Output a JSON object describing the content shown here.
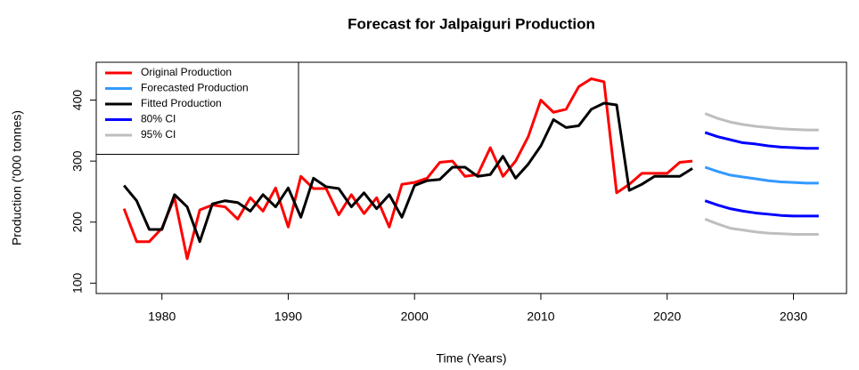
{
  "chart_data": {
    "type": "line",
    "title": "Forecast for Jalpaiguri Production",
    "x_label": "Time (Years)",
    "y_label": "Production ('000 tonnes)",
    "x": [
      1977,
      1978,
      1979,
      1980,
      1981,
      1982,
      1983,
      1984,
      1985,
      1986,
      1987,
      1988,
      1989,
      1990,
      1991,
      1992,
      1993,
      1994,
      1995,
      1996,
      1997,
      1998,
      1999,
      2000,
      2001,
      2002,
      2003,
      2004,
      2005,
      2006,
      2007,
      2008,
      2009,
      2010,
      2011,
      2012,
      2013,
      2014,
      2015,
      2016,
      2017,
      2018,
      2019,
      2020,
      2021,
      2022,
      2023,
      2024,
      2025,
      2026,
      2027,
      2028,
      2029,
      2030,
      2031,
      2032
    ],
    "series": [
      {
        "name": "Original Production",
        "color": "#ff0000",
        "values": [
          222,
          168,
          168,
          190,
          240,
          140,
          220,
          228,
          225,
          205,
          240,
          218,
          256,
          192,
          275,
          255,
          255,
          212,
          245,
          214,
          240,
          192,
          262,
          265,
          272,
          298,
          300,
          275,
          278,
          322,
          275,
          300,
          340,
          400,
          380,
          385,
          422,
          435,
          430,
          248,
          262,
          280,
          280,
          280,
          298,
          300,
          null,
          null,
          null,
          null,
          null,
          null,
          null,
          null,
          null,
          null
        ]
      },
      {
        "name": "Forecasted Production",
        "color": "#3399ff",
        "values": [
          null,
          null,
          null,
          null,
          null,
          null,
          null,
          null,
          null,
          null,
          null,
          null,
          null,
          null,
          null,
          null,
          null,
          null,
          null,
          null,
          null,
          null,
          null,
          null,
          null,
          null,
          null,
          null,
          null,
          null,
          null,
          null,
          null,
          null,
          null,
          null,
          null,
          null,
          null,
          null,
          null,
          null,
          null,
          null,
          null,
          null,
          290,
          283,
          277,
          274,
          271,
          268,
          266,
          265,
          264,
          264
        ]
      },
      {
        "name": "Fitted Production",
        "color": "#000000",
        "values": [
          260,
          235,
          188,
          188,
          245,
          225,
          168,
          230,
          235,
          232,
          218,
          245,
          225,
          256,
          208,
          272,
          258,
          255,
          225,
          248,
          222,
          245,
          208,
          260,
          268,
          270,
          290,
          290,
          275,
          278,
          308,
          272,
          295,
          325,
          368,
          355,
          358,
          385,
          395,
          392,
          252,
          262,
          275,
          275,
          275,
          288,
          null,
          null,
          null,
          null,
          null,
          null,
          null,
          null,
          null,
          null
        ]
      },
      {
        "name": "80% CI",
        "color": "#0000ff",
        "values": [
          null,
          null,
          null,
          null,
          null,
          null,
          null,
          null,
          null,
          null,
          null,
          null,
          null,
          null,
          null,
          null,
          null,
          null,
          null,
          null,
          null,
          null,
          null,
          null,
          null,
          null,
          null,
          null,
          null,
          null,
          null,
          null,
          null,
          null,
          null,
          null,
          null,
          null,
          null,
          null,
          null,
          null,
          null,
          null,
          null,
          null,
          347,
          340,
          335,
          330,
          328,
          325,
          323,
          322,
          321,
          321
        ]
      },
      {
        "name": "80% CI",
        "color": "#0000ff",
        "values": [
          null,
          null,
          null,
          null,
          null,
          null,
          null,
          null,
          null,
          null,
          null,
          null,
          null,
          null,
          null,
          null,
          null,
          null,
          null,
          null,
          null,
          null,
          null,
          null,
          null,
          null,
          null,
          null,
          null,
          null,
          null,
          null,
          null,
          null,
          null,
          null,
          null,
          null,
          null,
          null,
          null,
          null,
          null,
          null,
          null,
          null,
          235,
          228,
          222,
          218,
          215,
          213,
          211,
          210,
          210,
          210
        ]
      },
      {
        "name": "95% CI",
        "color": "#bebebe",
        "values": [
          null,
          null,
          null,
          null,
          null,
          null,
          null,
          null,
          null,
          null,
          null,
          null,
          null,
          null,
          null,
          null,
          null,
          null,
          null,
          null,
          null,
          null,
          null,
          null,
          null,
          null,
          null,
          null,
          null,
          null,
          null,
          null,
          null,
          null,
          null,
          null,
          null,
          null,
          null,
          null,
          null,
          null,
          null,
          null,
          null,
          null,
          378,
          370,
          364,
          360,
          357,
          355,
          353,
          352,
          351,
          351
        ]
      },
      {
        "name": "95% CI",
        "color": "#bebebe",
        "values": [
          null,
          null,
          null,
          null,
          null,
          null,
          null,
          null,
          null,
          null,
          null,
          null,
          null,
          null,
          null,
          null,
          null,
          null,
          null,
          null,
          null,
          null,
          null,
          null,
          null,
          null,
          null,
          null,
          null,
          null,
          null,
          null,
          null,
          null,
          null,
          null,
          null,
          null,
          null,
          null,
          null,
          null,
          null,
          null,
          null,
          null,
          205,
          197,
          190,
          187,
          184,
          182,
          181,
          180,
          180,
          180
        ]
      }
    ],
    "xlim": [
      1974.8,
      2034.2
    ],
    "xticks": [
      1980,
      1990,
      2000,
      2010,
      2020,
      2030
    ],
    "ylim": [
      83,
      462
    ],
    "yticks": [
      100,
      200,
      300,
      400
    ],
    "legend": "top-left",
    "grid": false
  }
}
